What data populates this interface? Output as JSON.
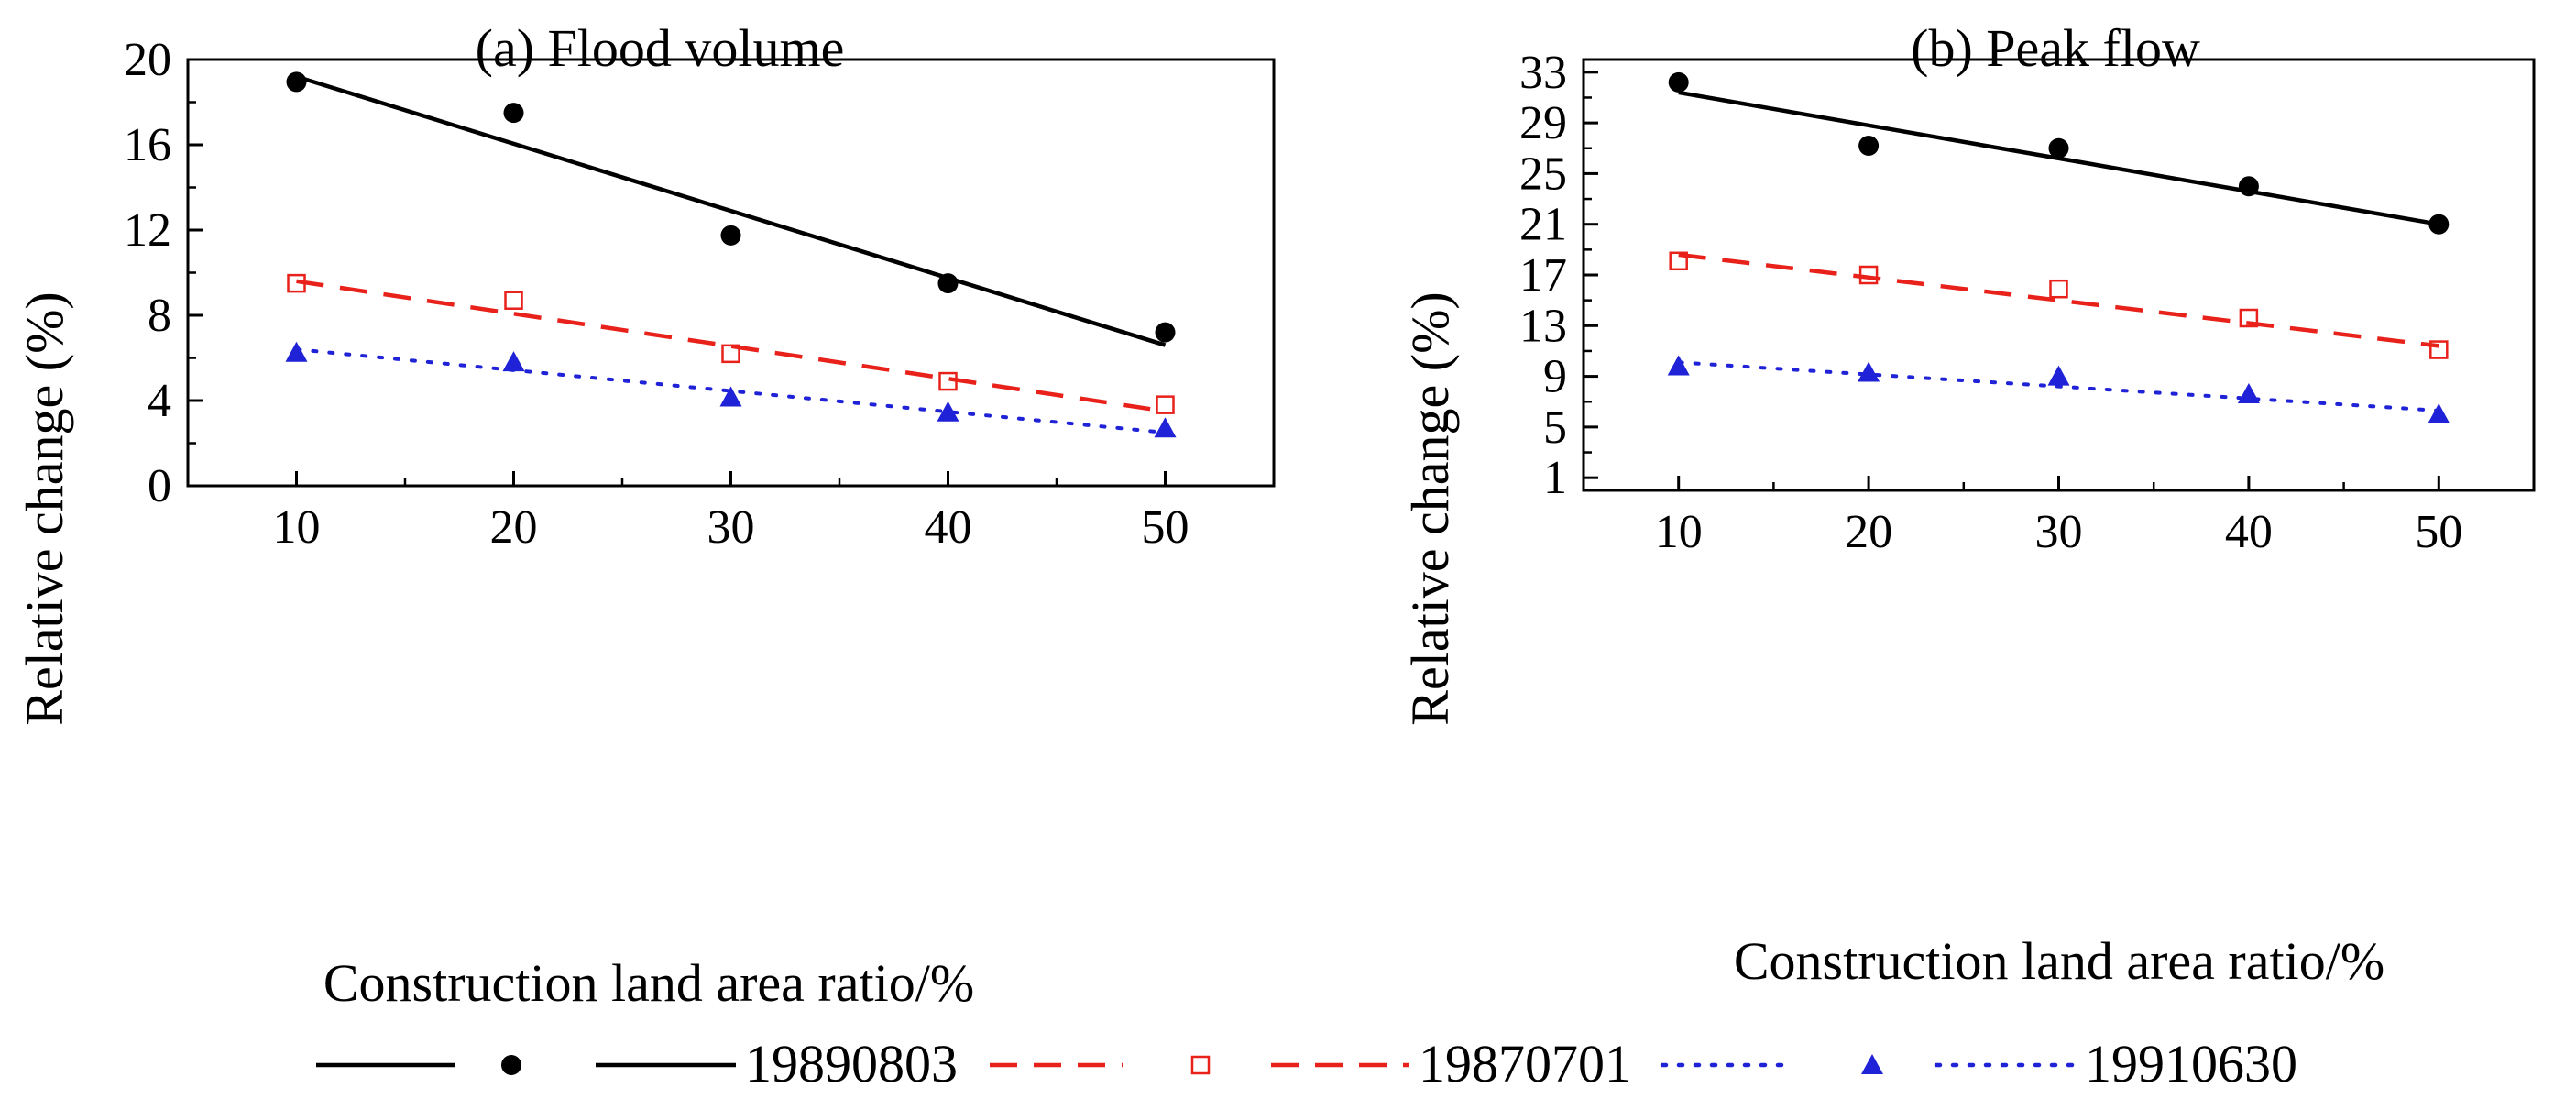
{
  "chart_data": [
    {
      "type": "scatter",
      "title": "(a) Flood volume",
      "xlabel": "Construction land area ratio/%",
      "ylabel": "Relative change (%)",
      "xlim": [
        5,
        55
      ],
      "ylim": [
        0,
        20
      ],
      "xticks": [
        10,
        20,
        30,
        40,
        50
      ],
      "xminor": [
        15,
        25,
        35,
        45
      ],
      "yticks": [
        0,
        4,
        8,
        12,
        16,
        20
      ],
      "yminor": [
        2,
        6,
        10,
        14,
        18
      ],
      "series": [
        {
          "name": "19890803",
          "marker": "circle",
          "line": "solid",
          "color": "#000000",
          "x": [
            10,
            20,
            30,
            40,
            50
          ],
          "values": [
            18.95,
            17.5,
            11.75,
            9.5,
            7.2
          ],
          "fit": [
            [
              10,
              19.2
            ],
            [
              50,
              6.6
            ]
          ]
        },
        {
          "name": "19870701",
          "marker": "open-square",
          "line": "dashed",
          "color": "#e8211b",
          "x": [
            10,
            20,
            30,
            40,
            50
          ],
          "values": [
            9.5,
            8.7,
            6.2,
            4.9,
            3.8
          ],
          "fit": [
            [
              10,
              9.6
            ],
            [
              50,
              3.5
            ]
          ]
        },
        {
          "name": "19910630",
          "marker": "triangle",
          "line": "dotted",
          "color": "#1f22d6",
          "x": [
            10,
            20,
            30,
            40,
            50
          ],
          "values": [
            6.25,
            5.8,
            4.15,
            3.45,
            2.7
          ],
          "fit": [
            [
              10,
              6.4
            ],
            [
              50,
              2.5
            ]
          ]
        }
      ]
    },
    {
      "type": "scatter",
      "title": "(b) Peak flow",
      "xlabel": "Construction land area ratio/%",
      "ylabel": "Relative change (%)",
      "xlim": [
        5,
        55
      ],
      "ylim": [
        0,
        34
      ],
      "xticks": [
        10,
        20,
        30,
        40,
        50
      ],
      "xminor": [
        15,
        25,
        35,
        45
      ],
      "yticks": [
        1,
        5,
        9,
        13,
        17,
        21,
        25,
        29,
        33
      ],
      "yminor": [
        3,
        7,
        11,
        15,
        19,
        23,
        27,
        31
      ],
      "series": [
        {
          "name": "19890803",
          "marker": "circle",
          "line": "solid",
          "color": "#000000",
          "x": [
            10,
            20,
            30,
            40,
            50
          ],
          "values": [
            32.2,
            27.2,
            27.0,
            24.0,
            21.0
          ],
          "fit": [
            [
              10,
              31.4
            ],
            [
              50,
              21.0
            ]
          ]
        },
        {
          "name": "19870701",
          "marker": "open-square",
          "line": "dashed",
          "color": "#e8211b",
          "x": [
            10,
            20,
            30,
            40,
            50
          ],
          "values": [
            18.1,
            17.0,
            15.9,
            13.6,
            11.1
          ],
          "fit": [
            [
              10,
              18.6
            ],
            [
              50,
              11.4
            ]
          ]
        },
        {
          "name": "19910630",
          "marker": "triangle",
          "line": "dotted",
          "color": "#1f22d6",
          "x": [
            10,
            20,
            30,
            40,
            50
          ],
          "values": [
            9.8,
            9.3,
            9.0,
            7.6,
            6.0
          ],
          "fit": [
            [
              10,
              10.1
            ],
            [
              50,
              6.3
            ]
          ]
        }
      ]
    }
  ],
  "legend": {
    "position": "bottom-center",
    "entries": [
      {
        "label": "19890803",
        "marker": "circle",
        "line": "solid",
        "color": "#000000"
      },
      {
        "label": "19870701",
        "marker": "open-square",
        "line": "dashed",
        "color": "#e8211b"
      },
      {
        "label": "19910630",
        "marker": "triangle",
        "line": "dotted",
        "color": "#1f22d6"
      }
    ]
  }
}
